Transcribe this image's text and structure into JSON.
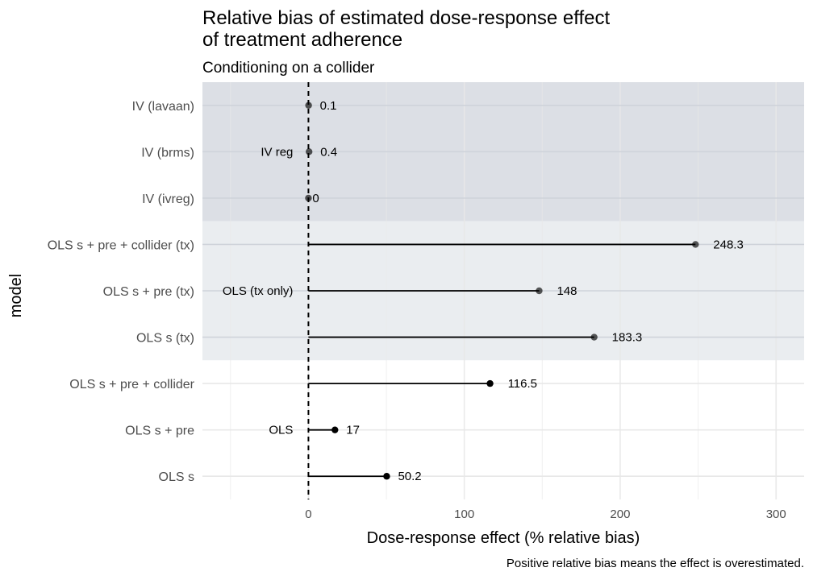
{
  "chart_data": {
    "type": "dot-lollipop",
    "title_line1": "Relative bias of estimated dose-response effect",
    "title_line2": "of treatment adherence",
    "subtitle": "Conditioning on a collider",
    "xlabel": "Dose-response effect (% relative bias)",
    "ylabel": "model",
    "caption": "Positive relative bias means the effect is overestimated.",
    "xlim": [
      -68,
      318
    ],
    "x_ticks": [
      0,
      100,
      200,
      300
    ],
    "x_tick_labels": [
      "0",
      "100",
      "200",
      "300"
    ],
    "reference_line": 0,
    "categories": [
      "IV (lavaan)",
      "IV (brms)",
      "IV (ivreg)",
      "OLS s + pre + collider (tx)",
      "OLS s + pre (tx)",
      "OLS s (tx)",
      "OLS s + pre + collider",
      "OLS s + pre",
      "OLS s"
    ],
    "values": [
      0.1,
      0.4,
      0,
      248.3,
      148,
      183.3,
      116.5,
      17,
      50.2
    ],
    "value_labels": [
      "0.1",
      "0.4",
      "0",
      "248.3",
      "148",
      "183.3",
      "116.5",
      "17",
      "50.2"
    ],
    "groups": [
      {
        "name": "IV reg",
        "rows": [
          0,
          1,
          2
        ],
        "fill": "#dcdfe5",
        "label_row": 1
      },
      {
        "name": "OLS (tx only)",
        "rows": [
          3,
          4,
          5
        ],
        "fill": "#eaedf0",
        "label_row": 4
      },
      {
        "name": "OLS",
        "rows": [
          6,
          7,
          8
        ],
        "fill": "#ffffff",
        "label_row": 7
      }
    ],
    "colors": {
      "point": "#000000",
      "gridline": "#e8e8e8",
      "shade_gridline": "#cfd3da",
      "segment": "#000000"
    }
  }
}
